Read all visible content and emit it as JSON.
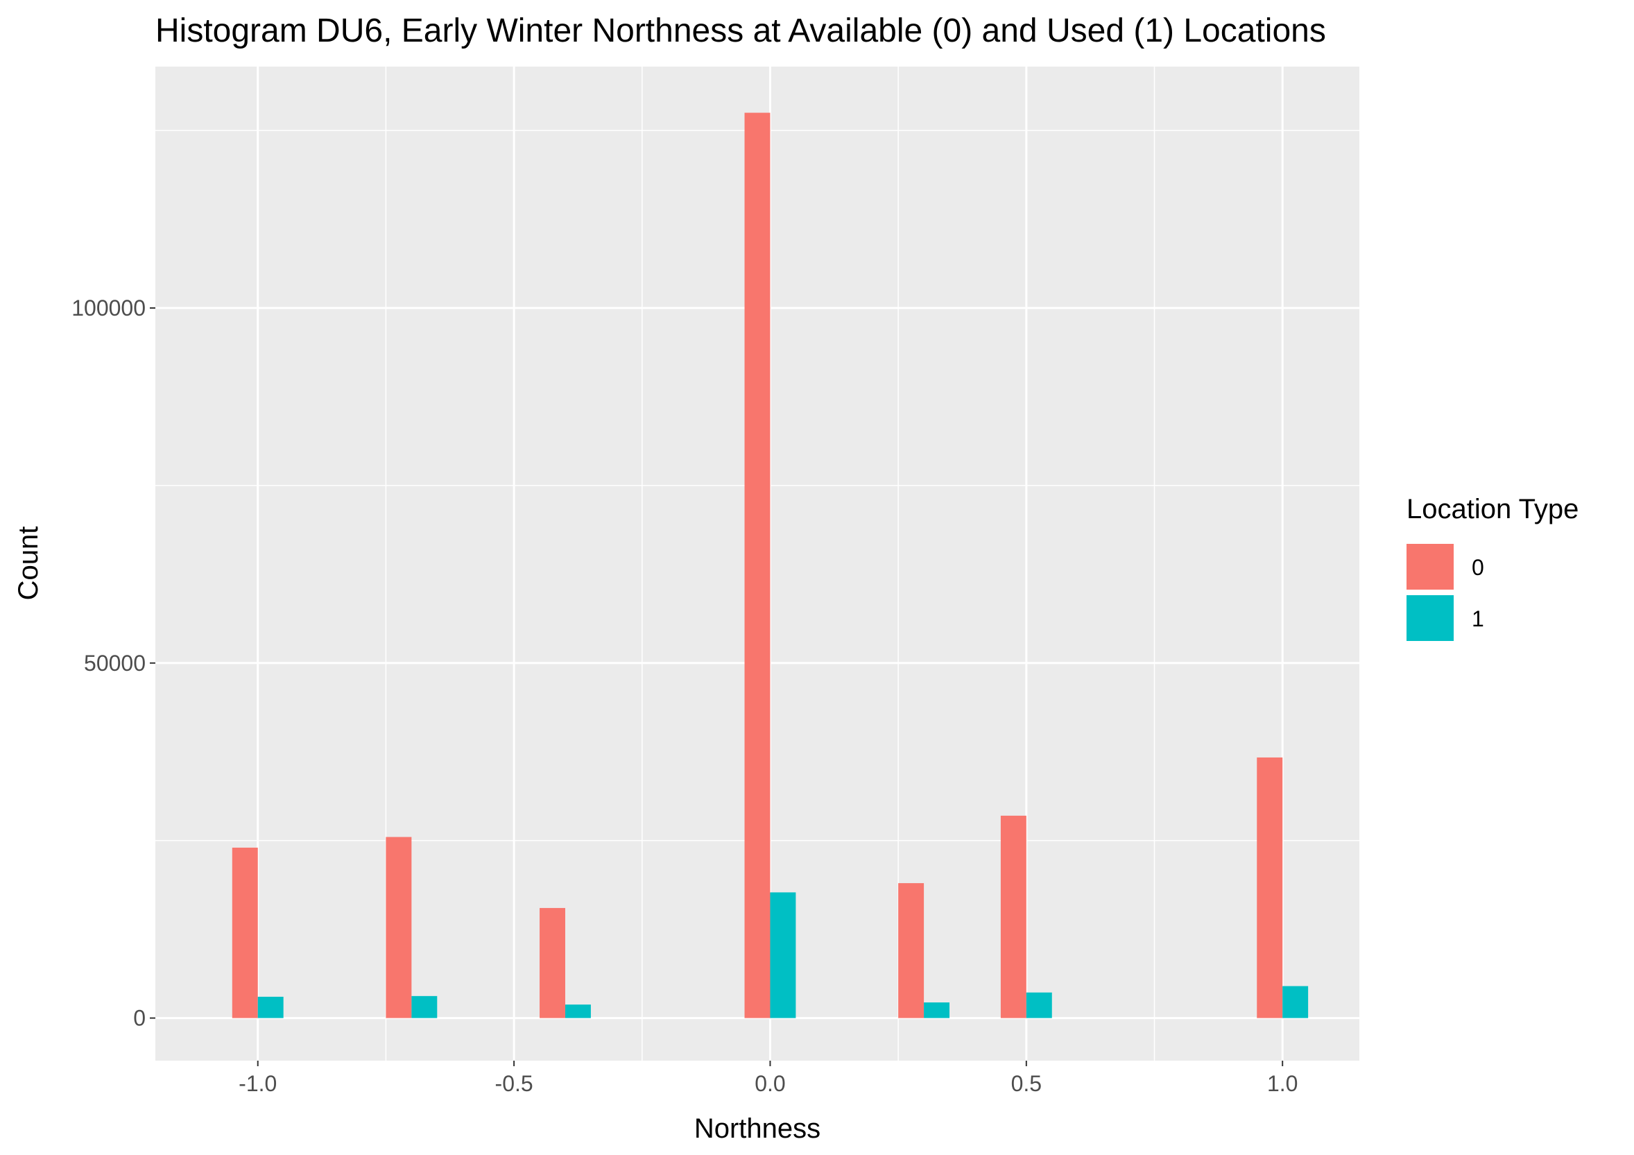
{
  "chart_data": {
    "type": "bar",
    "title": "Histogram DU6, Early Winter Northness at Available (0) and Used (1) Locations",
    "xlabel": "Northness",
    "ylabel": "Count",
    "x_ticks": [
      "-1.0",
      "-0.5",
      "0.0",
      "0.5",
      "1.0"
    ],
    "x_tick_values": [
      -1.0,
      -0.5,
      0.0,
      0.5,
      1.0
    ],
    "y_ticks": [
      "0",
      "50000",
      "100000"
    ],
    "y_tick_values": [
      0,
      50000,
      100000
    ],
    "xlim": [
      -1.2,
      1.15
    ],
    "ylim": [
      -6000,
      134000
    ],
    "bar_group_width": 0.1,
    "grid": true,
    "legend": {
      "title": "Location Type",
      "position": "right"
    },
    "series": [
      {
        "name": "0",
        "color": "#F8766D",
        "points": [
          {
            "x": -1.0,
            "y": 24000
          },
          {
            "x": -0.7,
            "y": 25500
          },
          {
            "x": -0.4,
            "y": 15500
          },
          {
            "x": 0.0,
            "y": 127500
          },
          {
            "x": 0.3,
            "y": 19000
          },
          {
            "x": 0.5,
            "y": 28500
          },
          {
            "x": 1.0,
            "y": 36700
          }
        ]
      },
      {
        "name": "1",
        "color": "#00BFC4",
        "points": [
          {
            "x": -1.0,
            "y": 3000
          },
          {
            "x": -0.7,
            "y": 3100
          },
          {
            "x": -0.4,
            "y": 1900
          },
          {
            "x": 0.0,
            "y": 17700
          },
          {
            "x": 0.3,
            "y": 2200
          },
          {
            "x": 0.5,
            "y": 3600
          },
          {
            "x": 1.0,
            "y": 4500
          }
        ]
      }
    ]
  }
}
